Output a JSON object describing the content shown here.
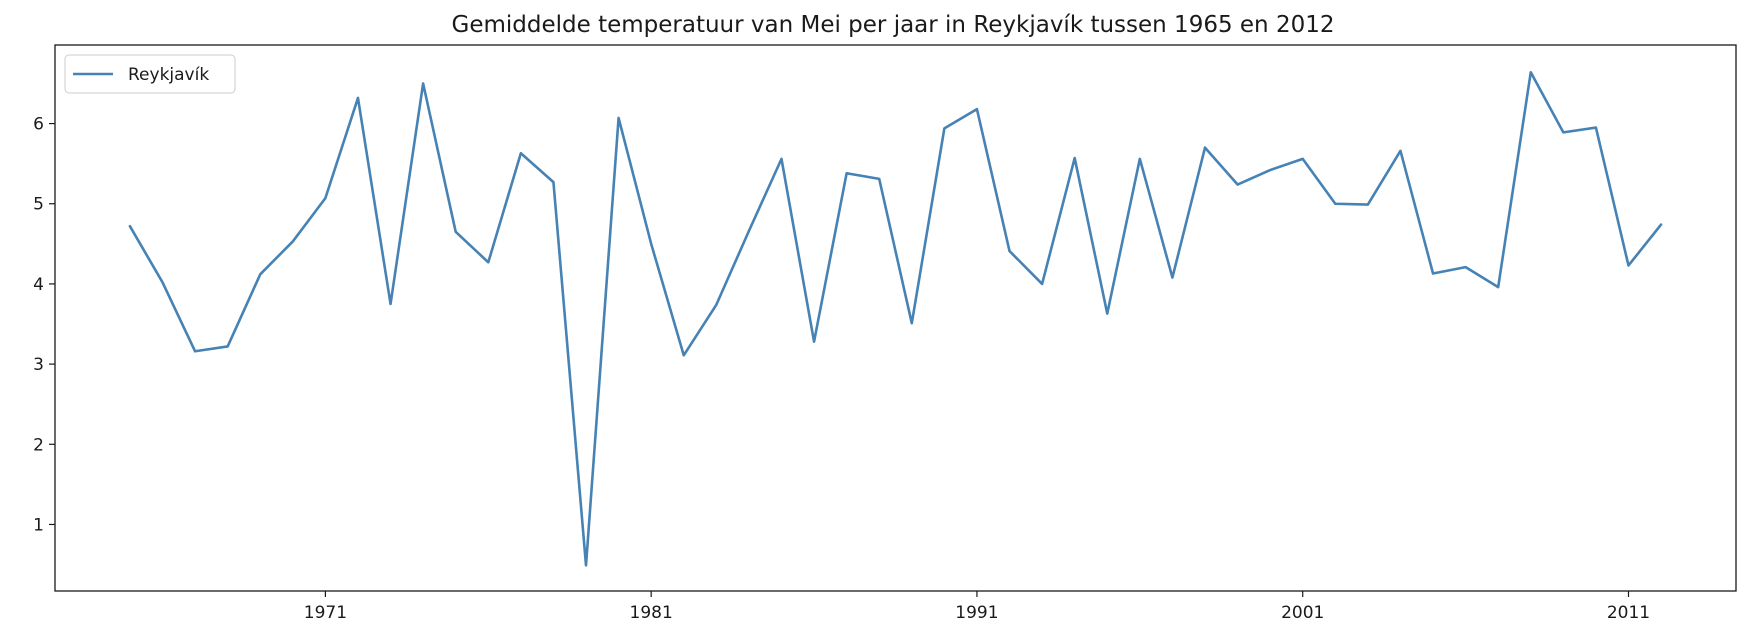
{
  "chart_data": {
    "type": "line",
    "title": "Gemiddelde temperatuur van Mei per jaar in Reykjavík tussen 1965 en 2012",
    "xlabel": "",
    "ylabel": "",
    "xlim": [
      1962.7,
      2014.3
    ],
    "ylim": [
      0.17,
      6.98
    ],
    "xticks": [
      1971,
      1981,
      1991,
      2001,
      2011
    ],
    "yticks": [
      1,
      2,
      3,
      4,
      5,
      6
    ],
    "grid": false,
    "legend_position": "upper-left",
    "colors": {
      "line": "#4682b4",
      "axes": "#1a1a1a",
      "legend_border": "#cccccc"
    },
    "series": [
      {
        "name": "Reykjavík",
        "x": [
          1965,
          1966,
          1967,
          1968,
          1969,
          1970,
          1971,
          1972,
          1973,
          1974,
          1975,
          1976,
          1977,
          1978,
          1979,
          1980,
          1981,
          1982,
          1983,
          1984,
          1985,
          1986,
          1987,
          1988,
          1989,
          1990,
          1991,
          1992,
          1993,
          1994,
          1995,
          1996,
          1997,
          1998,
          1999,
          2000,
          2001,
          2002,
          2003,
          2004,
          2005,
          2006,
          2007,
          2008,
          2009,
          2010,
          2011,
          2012
        ],
        "values": [
          4.72,
          4.02,
          3.16,
          3.22,
          4.12,
          4.53,
          5.07,
          6.32,
          3.75,
          6.5,
          4.65,
          4.27,
          5.63,
          5.27,
          0.49,
          6.07,
          4.5,
          3.11,
          3.74,
          4.66,
          5.56,
          3.28,
          5.38,
          5.31,
          3.51,
          5.94,
          6.18,
          4.41,
          4.0,
          5.57,
          3.63,
          5.56,
          4.08,
          5.7,
          5.24,
          5.42,
          5.56,
          5.0,
          4.99,
          5.66,
          4.13,
          4.21,
          3.96,
          6.64,
          5.89,
          5.95,
          4.23,
          4.74
        ]
      }
    ]
  }
}
